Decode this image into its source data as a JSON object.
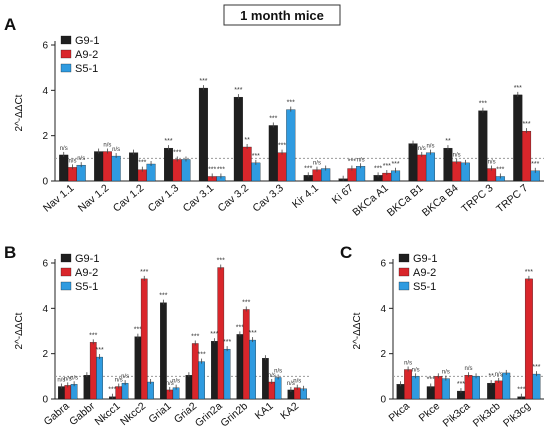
{
  "figure_title": "1 month mice",
  "colors": {
    "G9-1": "#1f1f1f",
    "A9-2": "#d9262b",
    "S5-1": "#2f9be0"
  },
  "chart_data": [
    {
      "panel": "A",
      "type": "bar",
      "ylabel": "2^-ΔΔCt",
      "ylim": [
        0,
        6
      ],
      "yticks": [
        0,
        2,
        4,
        6
      ],
      "reference_line": 1,
      "legend": {
        "placement": "top-left",
        "entries": [
          "G9-1",
          "A9-2",
          "S5-1"
        ]
      },
      "categories": [
        "Nav 1.1",
        "Nav 1.2",
        "Cav 1.2",
        "Cav 1.3",
        "Cav 3.1",
        "Cav 3.2",
        "Cav 3.3",
        "Kir 4.1",
        "Ki 67",
        "BKCa A1",
        "BKCa B1",
        "BKCa B4",
        "TRPC 3",
        "TRPC 7"
      ],
      "series": [
        {
          "name": "G9-1",
          "values": [
            1.15,
            1.3,
            1.25,
            1.45,
            4.1,
            3.7,
            2.45,
            0.25,
            0.1,
            0.25,
            1.65,
            1.45,
            3.1,
            3.8
          ],
          "significance": [
            "n/s",
            "",
            "",
            "***",
            "***",
            "***",
            "***",
            "***",
            "",
            "***",
            "",
            "**",
            "***",
            "***"
          ]
        },
        {
          "name": "A9-2",
          "values": [
            0.6,
            1.3,
            0.5,
            0.95,
            0.2,
            1.5,
            1.25,
            0.5,
            0.55,
            0.35,
            1.15,
            0.85,
            0.55,
            2.2
          ],
          "significance": [
            "n/s",
            "n/s",
            "***",
            "***",
            "***",
            "**",
            "***",
            "n/s",
            "***",
            "***",
            "n/s",
            "n/s",
            "n/s",
            "***"
          ]
        },
        {
          "name": "S5-1",
          "values": [
            0.7,
            1.1,
            0.75,
            0.95,
            0.2,
            0.8,
            3.15,
            0.55,
            0.65,
            0.45,
            1.25,
            0.8,
            0.2,
            0.45
          ],
          "significance": [
            "n/s",
            "n/s",
            "",
            "",
            "***",
            "***",
            "***",
            "",
            "n/s",
            "***",
            "n/s",
            "",
            "***",
            "***"
          ]
        }
      ]
    },
    {
      "panel": "B",
      "type": "bar",
      "ylabel": "2^-ΔΔCt",
      "ylim": [
        0,
        6
      ],
      "yticks": [
        0,
        2,
        4,
        6
      ],
      "reference_line": 1,
      "legend": {
        "placement": "top-left",
        "entries": [
          "G9-1",
          "A9-2",
          "S5-1"
        ]
      },
      "categories": [
        "Gabra",
        "Gabbr",
        "Nkcc1",
        "Nkcc2",
        "Gria1",
        "Gria2",
        "Grin2a",
        "Grin2b",
        "KA1",
        "KA2"
      ],
      "series": [
        {
          "name": "G9-1",
          "values": [
            0.55,
            1.05,
            0.1,
            2.75,
            4.25,
            1.05,
            2.55,
            2.85,
            1.8,
            0.4
          ],
          "significance": [
            "n/s",
            "",
            "***",
            "***",
            "***",
            "",
            "***",
            "***",
            "",
            "n/s"
          ]
        },
        {
          "name": "A9-2",
          "values": [
            0.6,
            2.5,
            0.55,
            5.3,
            0.4,
            2.45,
            5.8,
            3.95,
            0.75,
            0.5
          ],
          "significance": [
            "n/s",
            "***",
            "n/s",
            "***",
            "n/s",
            "***",
            "***",
            "***",
            "n/s",
            "n/s"
          ]
        },
        {
          "name": "S5-1",
          "values": [
            0.65,
            1.85,
            0.7,
            0.75,
            0.5,
            1.65,
            2.2,
            2.6,
            0.95,
            0.45
          ],
          "significance": [
            "n/s",
            "***",
            "n/s",
            "",
            "n/s",
            "***",
            "***",
            "***",
            "n/s",
            ""
          ]
        }
      ]
    },
    {
      "panel": "C",
      "type": "bar",
      "ylabel": "2^-ΔΔCt",
      "ylim": [
        0,
        6
      ],
      "yticks": [
        0,
        2,
        4,
        6
      ],
      "reference_line": 1,
      "legend": {
        "placement": "top-left",
        "entries": [
          "G9-1",
          "A9-2",
          "S5-1"
        ]
      },
      "categories": [
        "Pkca",
        "Pkce",
        "Pik3ca",
        "Pik3cb",
        "Pik3cg"
      ],
      "series": [
        {
          "name": "G9-1",
          "values": [
            0.65,
            0.55,
            0.35,
            0.7,
            0.1
          ],
          "significance": [
            "",
            "***",
            "***",
            "**",
            "***"
          ]
        },
        {
          "name": "A9-2",
          "values": [
            1.3,
            1.0,
            1.05,
            0.8,
            5.3
          ],
          "significance": [
            "n/s",
            "",
            "n/s",
            "n/s",
            "***"
          ]
        },
        {
          "name": "S5-1",
          "values": [
            1.0,
            0.9,
            1.0,
            1.15,
            1.1
          ],
          "significance": [
            "n/s",
            "n/s",
            "",
            "",
            "***"
          ]
        }
      ]
    }
  ]
}
